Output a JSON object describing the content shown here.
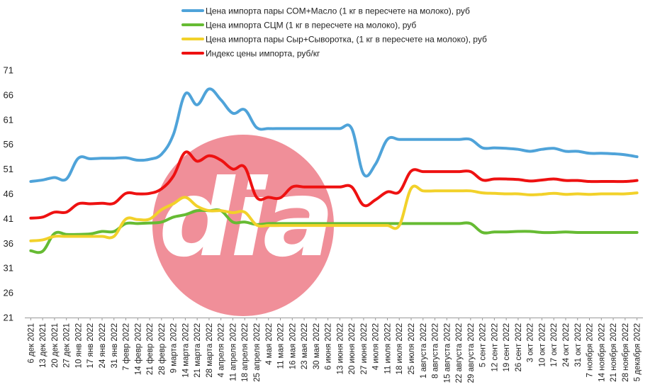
{
  "chart_data": {
    "type": "line",
    "title": "",
    "xlabel": "",
    "ylabel": "",
    "ylim": [
      21,
      71
    ],
    "yticks": [
      21,
      26,
      31,
      36,
      41,
      46,
      51,
      56,
      61,
      66,
      71
    ],
    "grid": false,
    "legend_position": "top",
    "categories": [
      "6 дек 2021",
      "13 дек 2021",
      "20 дек 2021",
      "27 дек 2021",
      "10 янв 2022",
      "17 янв 2022",
      "24 янв 2022",
      "31 янв 2022",
      "7 февр 2022",
      "14 февр 2022",
      "21 февр 2022",
      "28 февр 2022",
      "9 марта 2022",
      "14 марта 2022",
      "21 марта 2022",
      "28 марта 2022",
      "4 апреля 2022",
      "11 апреля 2022",
      "18 апреля 2022",
      "25 апреля 2022",
      "4 мая 2022",
      "11 мая 2022",
      "16 мая 2022",
      "23 мая 2022",
      "30 мая 2022",
      "6 июня 2022",
      "13 июня 2022",
      "20 июня 2022",
      "27 июня 2022",
      "4 июля 2022",
      "11 июля 2022",
      "18 июля 2022",
      "25 июля 2022",
      "1 августа 2022",
      "8 августа 2022",
      "15 августа 2022",
      "22 августа 2022",
      "29 августа 2022",
      "5 сент 2022",
      "12 сент 2022",
      "19 сент 2022",
      "26 сент 2022",
      "3 окт 2022",
      "10 окт 2022",
      "17 окт 2022",
      "24 окт 2022",
      "31 окт 2022",
      "7 ноября 2022",
      "14 ноября 2022",
      "21 ноября 2022",
      "28 ноября 2022",
      "5 декабря 2022"
    ],
    "series": [
      {
        "name": "Цена импорта пары СОМ+Масло  (1 кг в пересчете на молоко), руб",
        "color": "#4fa3d9",
        "values": [
          48.5,
          48.8,
          49.3,
          49.0,
          53.2,
          53.1,
          53.2,
          53.2,
          53.3,
          52.8,
          53.0,
          54.0,
          58.0,
          66.2,
          64.0,
          67.2,
          65.0,
          62.3,
          63.0,
          59.4,
          59.2,
          59.2,
          59.2,
          59.2,
          59.2,
          59.2,
          59.2,
          59.2,
          50.0,
          52.0,
          57.0,
          57.0,
          57.0,
          57.0,
          57.0,
          57.0,
          57.0,
          57.0,
          55.3,
          55.3,
          55.2,
          55.0,
          54.6,
          55.0,
          55.2,
          54.6,
          54.6,
          54.2,
          54.2,
          54.1,
          53.9,
          53.5
        ]
      },
      {
        "name": "Цена импорта СЦМ (1 кг в пересчете на молоко), руб",
        "color": "#66bb33",
        "values": [
          34.5,
          34.4,
          38.0,
          37.8,
          37.8,
          37.9,
          38.4,
          38.4,
          40.0,
          40.0,
          40.1,
          40.3,
          41.3,
          41.8,
          42.6,
          42.6,
          42.6,
          40.3,
          40.3,
          39.8,
          40.0,
          40.0,
          40.0,
          40.0,
          40.0,
          40.0,
          40.0,
          40.0,
          40.0,
          40.0,
          40.0,
          40.0,
          40.0,
          40.0,
          40.0,
          40.0,
          40.0,
          40.0,
          38.2,
          38.3,
          38.3,
          38.4,
          38.4,
          38.2,
          38.2,
          38.3,
          38.2,
          38.2,
          38.2,
          38.2,
          38.2,
          38.2
        ]
      },
      {
        "name": "Цена импорта пары Сыр+Сыворотка, (1 кг в пересчете на молоко), руб",
        "color": "#f2d12a",
        "values": [
          36.5,
          36.7,
          37.4,
          37.4,
          37.4,
          37.4,
          37.4,
          37.4,
          40.9,
          40.8,
          40.9,
          42.8,
          44.0,
          45.3,
          43.5,
          42.6,
          42.6,
          42.2,
          42.3,
          39.7,
          39.6,
          39.6,
          39.6,
          39.6,
          39.6,
          39.6,
          39.6,
          39.6,
          39.6,
          39.6,
          39.6,
          39.6,
          47.1,
          46.6,
          46.6,
          46.6,
          46.6,
          46.6,
          46.2,
          46.1,
          46.0,
          46.0,
          45.8,
          45.9,
          46.1,
          45.9,
          46.0,
          45.9,
          46.0,
          46.0,
          46.0,
          46.2
        ]
      },
      {
        "name": "Индекс цены импорта, руб/кг",
        "color": "#ee1111",
        "values": [
          41.1,
          41.3,
          42.3,
          42.3,
          44.0,
          44.0,
          44.1,
          44.1,
          46.1,
          46.0,
          46.1,
          47.0,
          49.6,
          54.4,
          52.6,
          53.7,
          52.8,
          51.0,
          51.4,
          45.3,
          45.3,
          45.2,
          47.4,
          47.4,
          47.4,
          47.4,
          47.4,
          47.4,
          43.7,
          44.8,
          46.4,
          46.4,
          50.6,
          50.5,
          50.5,
          50.5,
          50.5,
          50.5,
          48.8,
          49.0,
          49.0,
          48.9,
          48.6,
          48.8,
          49.0,
          48.7,
          48.7,
          48.5,
          48.5,
          48.5,
          48.5,
          48.7
        ]
      }
    ]
  },
  "watermark": {
    "text": "dia",
    "color": "#f08f99"
  }
}
